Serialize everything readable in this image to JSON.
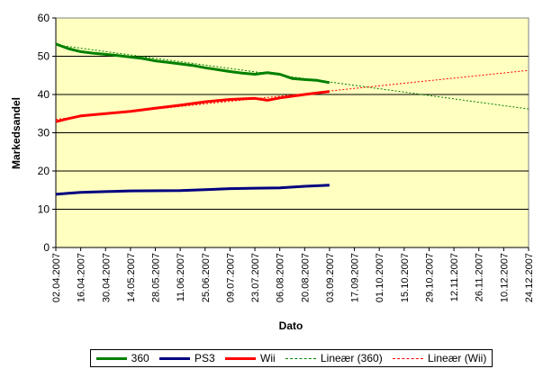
{
  "chart_data": {
    "type": "line",
    "xlabel": "Dato",
    "ylabel": "Markedsandel",
    "ylim": [
      0,
      60
    ],
    "yticks": [
      0,
      10,
      20,
      30,
      40,
      50,
      60
    ],
    "xlim": [
      "2007-04-02",
      "2007-12-24"
    ],
    "xticks": [
      "02.04.2007",
      "16.04.2007",
      "30.04.2007",
      "14.05.2007",
      "28.05.2007",
      "11.06.2007",
      "25.06.2007",
      "09.07.2007",
      "23.07.2007",
      "06.08.2007",
      "20.08.2007",
      "03.09.2007",
      "17.09.2007",
      "01.10.2007",
      "15.10.2007",
      "29.10.2007",
      "12.11.2007",
      "26.11.2007",
      "10.12.2007",
      "24.12.2007"
    ],
    "grid": {
      "horizontal": true,
      "vertical": false
    },
    "plot_background": "#ffffc0",
    "legend_position": "bottom",
    "series": [
      {
        "name": "360",
        "color": "#008000",
        "style": "solid",
        "points": [
          [
            "2007-04-02",
            53.2
          ],
          [
            "2007-04-09",
            52.0
          ],
          [
            "2007-04-16",
            51.2
          ],
          [
            "2007-04-23",
            50.8
          ],
          [
            "2007-04-30",
            50.5
          ],
          [
            "2007-05-07",
            50.2
          ],
          [
            "2007-05-14",
            49.8
          ],
          [
            "2007-05-21",
            49.4
          ],
          [
            "2007-05-28",
            48.8
          ],
          [
            "2007-06-04",
            48.4
          ],
          [
            "2007-06-11",
            48.0
          ],
          [
            "2007-06-18",
            47.6
          ],
          [
            "2007-06-25",
            47.0
          ],
          [
            "2007-07-02",
            46.5
          ],
          [
            "2007-07-09",
            46.0
          ],
          [
            "2007-07-16",
            45.6
          ],
          [
            "2007-07-23",
            45.3
          ],
          [
            "2007-07-30",
            45.7
          ],
          [
            "2007-08-06",
            45.3
          ],
          [
            "2007-08-13",
            44.2
          ],
          [
            "2007-08-20",
            43.9
          ],
          [
            "2007-08-27",
            43.7
          ],
          [
            "2007-09-03",
            43.1
          ]
        ]
      },
      {
        "name": "PS3",
        "color": "#000080",
        "style": "solid",
        "points": [
          [
            "2007-04-02",
            13.9
          ],
          [
            "2007-04-09",
            14.2
          ],
          [
            "2007-04-16",
            14.4
          ],
          [
            "2007-04-30",
            14.6
          ],
          [
            "2007-05-14",
            14.8
          ],
          [
            "2007-06-11",
            14.9
          ],
          [
            "2007-06-25",
            15.1
          ],
          [
            "2007-07-09",
            15.4
          ],
          [
            "2007-07-23",
            15.5
          ],
          [
            "2007-08-06",
            15.6
          ],
          [
            "2007-08-20",
            16.0
          ],
          [
            "2007-09-03",
            16.3
          ]
        ]
      },
      {
        "name": "Wii",
        "color": "#ff0000",
        "style": "solid",
        "points": [
          [
            "2007-04-02",
            32.9
          ],
          [
            "2007-04-09",
            33.7
          ],
          [
            "2007-04-16",
            34.4
          ],
          [
            "2007-04-30",
            35.0
          ],
          [
            "2007-05-14",
            35.6
          ],
          [
            "2007-05-28",
            36.4
          ],
          [
            "2007-06-11",
            37.2
          ],
          [
            "2007-06-25",
            38.1
          ],
          [
            "2007-07-09",
            38.7
          ],
          [
            "2007-07-23",
            39.0
          ],
          [
            "2007-07-30",
            38.5
          ],
          [
            "2007-08-06",
            39.1
          ],
          [
            "2007-08-20",
            40.0
          ],
          [
            "2007-09-03",
            40.8
          ]
        ]
      },
      {
        "name": "Lineær (360)",
        "color": "#008000",
        "style": "dashed",
        "points": [
          [
            "2007-04-02",
            53.0
          ],
          [
            "2007-12-24",
            36.2
          ]
        ]
      },
      {
        "name": "Lineær (Wii)",
        "color": "#ff0000",
        "style": "dashed",
        "points": [
          [
            "2007-04-02",
            33.5
          ],
          [
            "2007-12-24",
            46.3
          ]
        ]
      }
    ]
  }
}
